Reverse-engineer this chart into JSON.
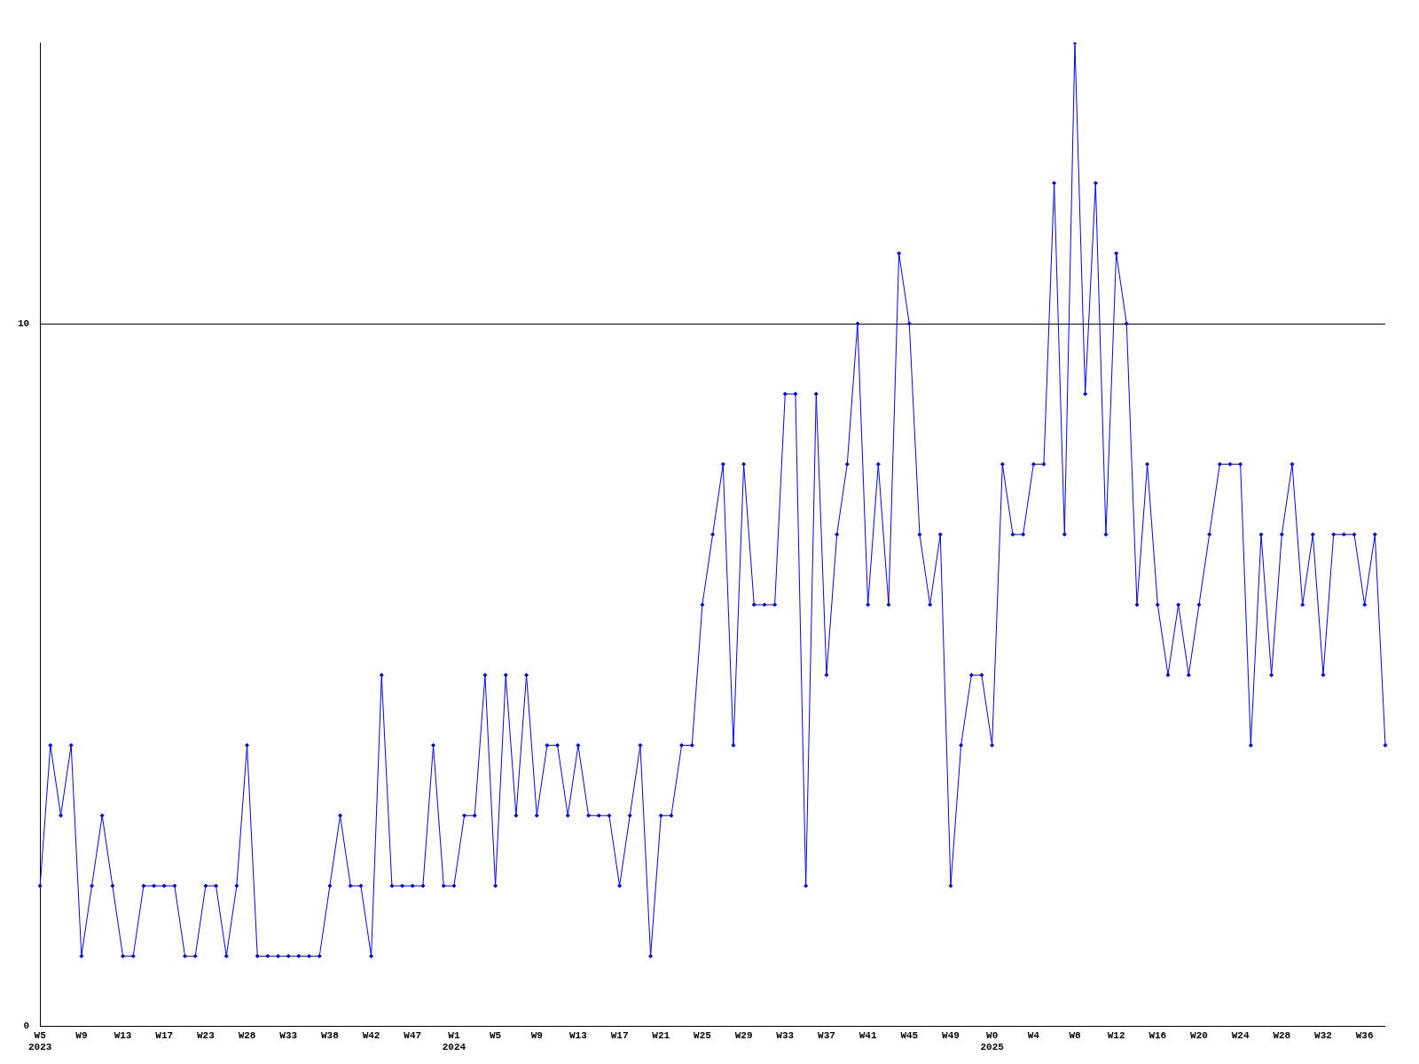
{
  "chart_data": {
    "type": "line",
    "categories": [
      "W5\n2023",
      null,
      null,
      null,
      "W9",
      null,
      null,
      null,
      "W13",
      null,
      null,
      null,
      "W17",
      null,
      null,
      null,
      "W23",
      null,
      null,
      null,
      "W28",
      null,
      null,
      null,
      "W33",
      null,
      null,
      null,
      "W38",
      null,
      null,
      null,
      "W42",
      null,
      null,
      null,
      "W47",
      null,
      null,
      null,
      "W1\n2024",
      null,
      null,
      null,
      "W5",
      null,
      null,
      null,
      "W9",
      null,
      null,
      null,
      "W13",
      null,
      null,
      null,
      "W17",
      null,
      null,
      null,
      "W21",
      null,
      null,
      null,
      "W25",
      null,
      null,
      null,
      "W29",
      null,
      null,
      null,
      "W33",
      null,
      null,
      null,
      "W37",
      null,
      null,
      null,
      "W41",
      null,
      null,
      null,
      "W45",
      null,
      null,
      null,
      "W49",
      null,
      null,
      null,
      "W0\n2025",
      null,
      null,
      null,
      "W4",
      null,
      null,
      null,
      "W8",
      null,
      null,
      null,
      "W12",
      null,
      null,
      null,
      "W16",
      null,
      null,
      null,
      "W20",
      null,
      null,
      null,
      "W24",
      null,
      null,
      null,
      "W28",
      null,
      null,
      null,
      "W32",
      null,
      null,
      null,
      "W36",
      null,
      null
    ],
    "series": [
      {
        "color": "#0000ff",
        "values": [
          2,
          4,
          3,
          4,
          1,
          2,
          3,
          2,
          1,
          1,
          2,
          2,
          2,
          2,
          1,
          1,
          2,
          2,
          1,
          2,
          4,
          1,
          1,
          1,
          1,
          1,
          1,
          1,
          2,
          3,
          2,
          2,
          1,
          5,
          2,
          2,
          2,
          2,
          4,
          2,
          2,
          3,
          3,
          5,
          2,
          5,
          3,
          5,
          3,
          4,
          4,
          3,
          4,
          3,
          3,
          3,
          2,
          3,
          4,
          1,
          3,
          3,
          4,
          4,
          6,
          7,
          8,
          4,
          8,
          6,
          6,
          6,
          9,
          9,
          2,
          9,
          5,
          7,
          8,
          10,
          6,
          8,
          6,
          11,
          10,
          7,
          6,
          7,
          2,
          4,
          5,
          5,
          4,
          8,
          7,
          7,
          8,
          8,
          12,
          7,
          14,
          9,
          12,
          7,
          11,
          10,
          6,
          8,
          6,
          5,
          6,
          5,
          6,
          7,
          8,
          8,
          8,
          4,
          7,
          5,
          7,
          8,
          6,
          7,
          5,
          7,
          7,
          7,
          6,
          7,
          4
        ]
      }
    ],
    "ylim": [
      0,
      14
    ],
    "yticks": [
      0,
      10
    ],
    "grid": "y",
    "marker": "diamond",
    "line_style": "solid",
    "legend": false
  }
}
